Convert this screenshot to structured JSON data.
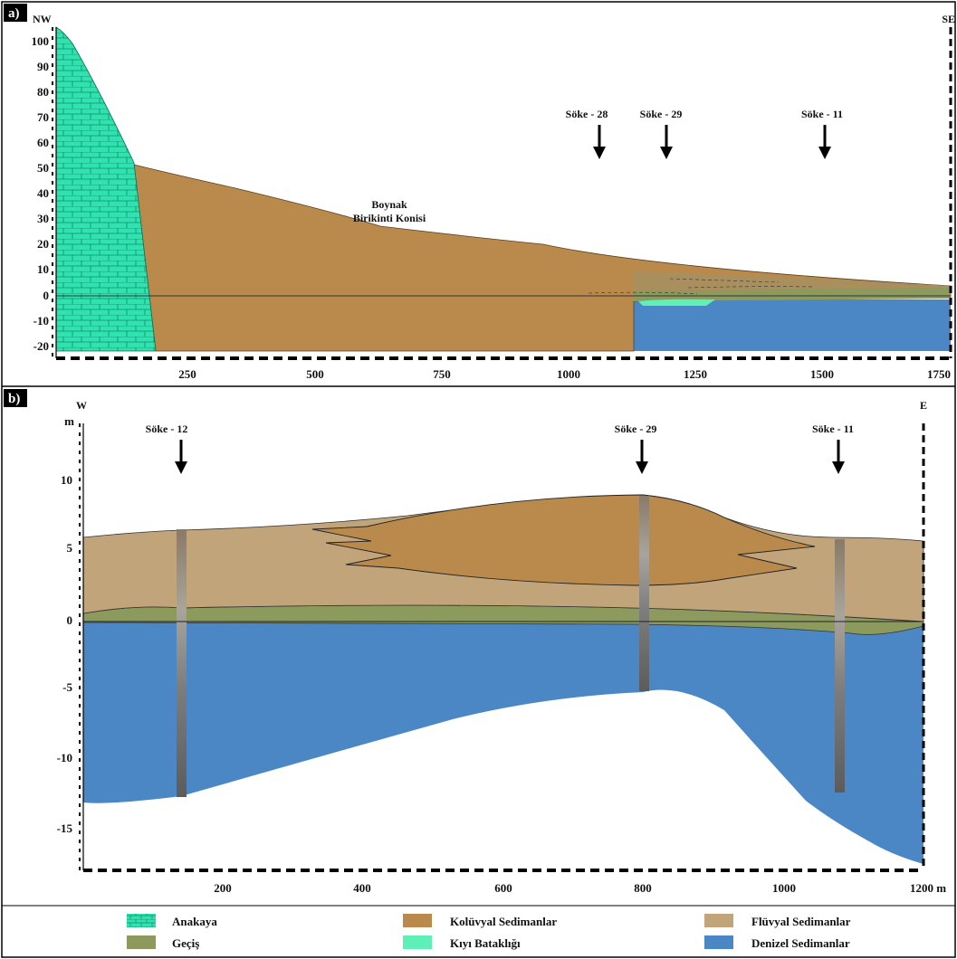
{
  "panel_a": {
    "tag": "a)",
    "left_dir": "NW",
    "right_dir": "SE",
    "fan_label_line1": "Boynak",
    "fan_label_line2": "Birikinti Konisi",
    "boreholes": [
      "Söke - 28",
      "Söke - 29",
      "Söke - 11"
    ],
    "y_ticks": [
      "100",
      "90",
      "80",
      "70",
      "60",
      "50",
      "40",
      "30",
      "20",
      "10",
      "0",
      "-10",
      "-20"
    ],
    "x_ticks": [
      "250",
      "500",
      "750",
      "1000",
      "1250",
      "1500",
      "1750"
    ]
  },
  "panel_b": {
    "tag": "b)",
    "left_dir": "W",
    "right_dir": "E",
    "y_unit": "m",
    "boreholes": [
      "Söke - 12",
      "Söke - 29",
      "Söke - 11"
    ],
    "y_ticks": [
      "10",
      "5",
      "0",
      "-5",
      "-10",
      "-15"
    ],
    "x_ticks": [
      "200",
      "400",
      "600",
      "800",
      "1000",
      "1200 m"
    ]
  },
  "legend": [
    {
      "label": "Anakaya",
      "color": "#2fe3b0"
    },
    {
      "label": "Kolüvyal Sedimanlar",
      "color": "#b98a4c"
    },
    {
      "label": "Flüvyal Sedimanlar",
      "color": "#c2a47a"
    },
    {
      "label": "Geçiş",
      "color": "#8c9a5d"
    },
    {
      "label": "Kıyı Bataklığı",
      "color": "#5ff0b8"
    },
    {
      "label": "Denizel Sedimanlar",
      "color": "#4a87c4"
    }
  ],
  "colors": {
    "bedrock": "#2fe3b0",
    "colluvial": "#b98a4c",
    "fluvial": "#c2a47a",
    "transition": "#8c9a5d",
    "marsh": "#5ff0b8",
    "marine": "#4a87c4"
  }
}
